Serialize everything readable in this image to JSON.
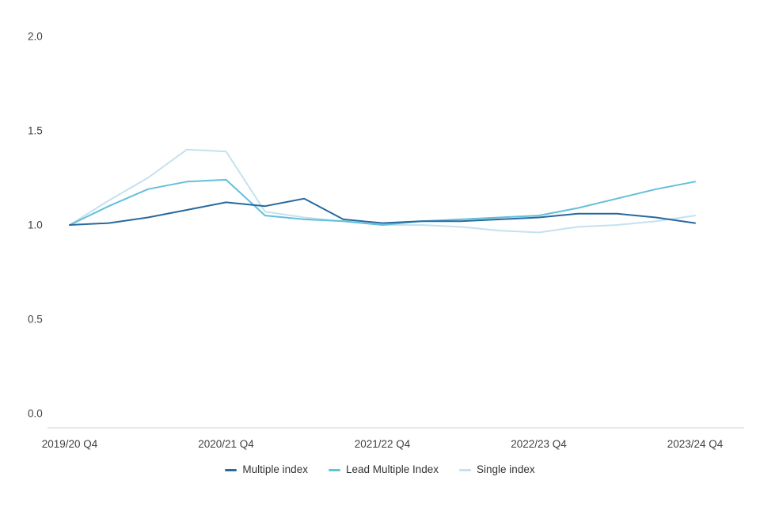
{
  "chart_data": {
    "type": "line",
    "title": "",
    "xlabel": "",
    "ylabel": "",
    "grid": false,
    "legend_position": "bottom",
    "ylim": [
      0.0,
      2.0
    ],
    "x_count": 17,
    "x_tick_positions": [
      0,
      4,
      8,
      12,
      16
    ],
    "x_tick_labels": [
      "2019/20 Q4",
      "2020/21 Q4",
      "2021/22 Q4",
      "2022/23 Q4",
      "2023/24 Q4"
    ],
    "y_ticks": [
      0.0,
      0.5,
      1.0,
      1.5,
      2.0
    ],
    "y_tick_labels": [
      "0.0",
      "0.5",
      "1.0",
      "1.5",
      "2.0"
    ],
    "axis_color": "#cfcfcf",
    "tick_label_color": "#414042",
    "series": [
      {
        "name": "Multiple index",
        "color": "#28699e",
        "values": [
          1.0,
          1.01,
          1.04,
          1.08,
          1.12,
          1.1,
          1.14,
          1.03,
          1.01,
          1.02,
          1.02,
          1.03,
          1.04,
          1.06,
          1.06,
          1.04,
          1.01
        ]
      },
      {
        "name": "Lead Multiple Index",
        "color": "#64bfda",
        "values": [
          1.0,
          1.1,
          1.19,
          1.23,
          1.24,
          1.05,
          1.03,
          1.02,
          1.0,
          1.02,
          1.03,
          1.04,
          1.05,
          1.09,
          1.14,
          1.19,
          1.23
        ]
      },
      {
        "name": "Single index",
        "color": "#c4e1ef",
        "values": [
          1.0,
          1.13,
          1.25,
          1.4,
          1.39,
          1.07,
          1.04,
          1.02,
          1.0,
          1.0,
          0.99,
          0.97,
          0.96,
          0.99,
          1.0,
          1.02,
          1.05
        ]
      }
    ]
  },
  "legend": {
    "items": [
      "Multiple index",
      "Lead Multiple Index",
      "Single index"
    ]
  }
}
